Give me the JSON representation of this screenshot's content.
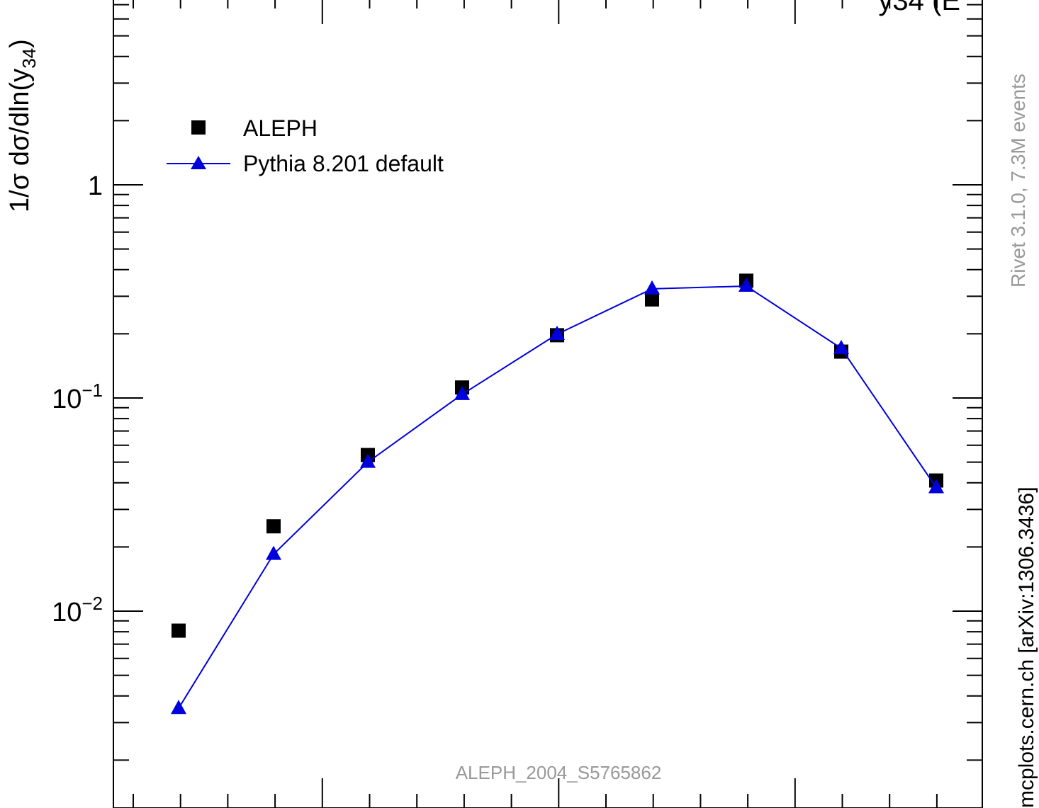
{
  "chart_data": {
    "type": "scatter",
    "title": "y34 (E",
    "ylabel_prefix": "1/σ  dσ/dln(y",
    "ylabel_subscript": "34",
    "ylabel_suffix": ")",
    "yscale": "log",
    "y_tick_labels": [
      {
        "value": 1,
        "base": "1",
        "exp": ""
      },
      {
        "value": 0.1,
        "base": "10",
        "exp": "−1"
      },
      {
        "value": 0.01,
        "base": "10",
        "exp": "−2"
      }
    ],
    "legend": {
      "placement": "top-left",
      "entries": [
        "ALEPH",
        "Pythia 8.201 default"
      ]
    },
    "series": [
      {
        "name": "ALEPH",
        "marker": "square",
        "color": "#000000",
        "values": [
          0.0081,
          0.025,
          0.054,
          0.112,
          0.197,
          0.29,
          0.355,
          0.165,
          0.041
        ]
      },
      {
        "name": "Pythia 8.201 default",
        "marker": "triangle",
        "color": "#0000dd",
        "line": true,
        "values": [
          0.0035,
          0.0185,
          0.05,
          0.104,
          0.199,
          0.325,
          0.335,
          0.171,
          0.038
        ]
      }
    ],
    "analysis_label": "ALEPH_2004_S5765862",
    "side_text_top": "Rivet 3.1.0,  7.3M events",
    "side_text_bottom": "mcplots.cern.ch [arXiv:1306.3436]"
  }
}
